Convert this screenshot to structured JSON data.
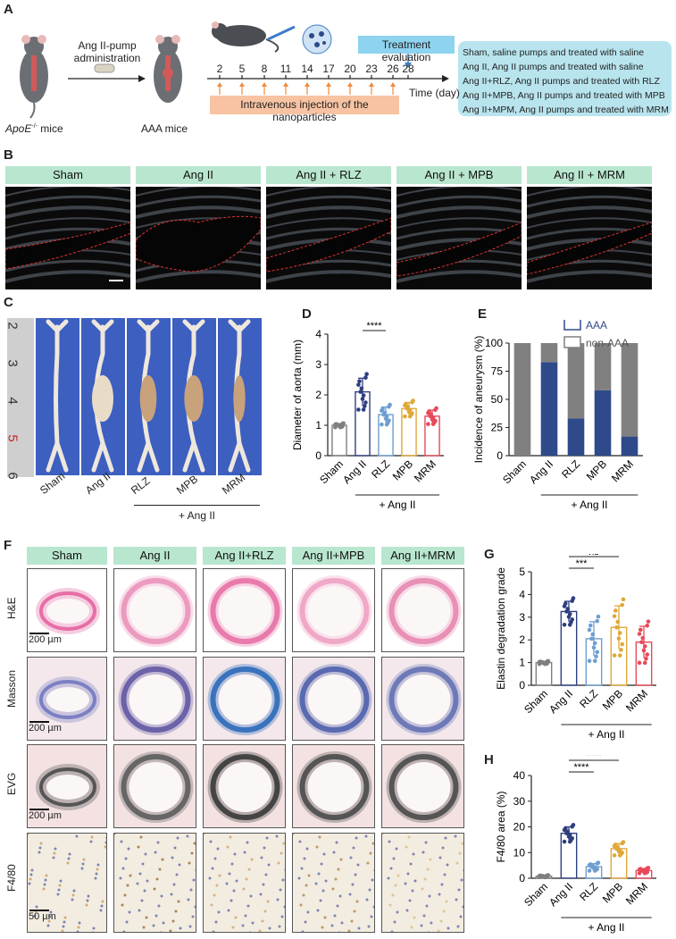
{
  "panels": {
    "A": "A",
    "B": "B",
    "C": "C",
    "D": "D",
    "E": "E",
    "F": "F",
    "G": "G",
    "H": "H"
  },
  "panelA": {
    "pump_text_1": "Ang II-pump",
    "pump_text_2": "administration",
    "mouse1_label_gene": "ApoE",
    "mouse1_label_sup": "-/-",
    "mouse1_label_rest": " mice",
    "mouse2_label": "AAA mice",
    "days": [
      "2",
      "5",
      "8",
      "11",
      "14",
      "17",
      "20",
      "23",
      "26",
      "28"
    ],
    "time_label": "Time (day)",
    "injection_label": "Intravenous injection of the nanoparticles",
    "evaluation_label": "Treatment evaluation",
    "legend": [
      "Sham, saline pumps and treated with saline",
      "Ang II, Ang II pumps and treated with saline",
      "Ang II+RLZ, Ang II pumps and treated with RLZ",
      "Ang II+MPB, Ang II pumps and treated with MPB",
      "Ang II+MPM, Ang II pumps and treated with MRM"
    ]
  },
  "panelB": {
    "groups": [
      "Sham",
      "Ang II",
      "Ang II + RLZ",
      "Ang II + MPB",
      "Ang II + MRM"
    ]
  },
  "panelC": {
    "ruler": [
      "2",
      "3",
      "4",
      "5",
      "6"
    ],
    "groups": [
      "Sham",
      "Ang II",
      "RLZ",
      "MPB",
      "MRM"
    ],
    "treat_label": "+ Ang II"
  },
  "panelF": {
    "groups": [
      "Sham",
      "Ang II",
      "Ang II+RLZ",
      "Ang II+MPB",
      "Ang II+MRM"
    ],
    "rows": [
      "H&E",
      "Masson",
      "EVG",
      "F4/80"
    ],
    "scale_200": "200 µm",
    "scale_50": "50 µm"
  },
  "chart_data": [
    {
      "id": "D",
      "type": "bar",
      "categories": [
        "Sham",
        "Ang II",
        "RLZ",
        "MPB",
        "MRM"
      ],
      "values": [
        1.0,
        2.1,
        1.35,
        1.55,
        1.3
      ],
      "errors": [
        0.05,
        0.45,
        0.25,
        0.2,
        0.2
      ],
      "ylabel": "Diameter of aorta (mm)",
      "ylim": [
        0,
        4
      ],
      "yticks": [
        0,
        1,
        2,
        3,
        4
      ],
      "colors": [
        "#7f7f7f",
        "#2e3f7f",
        "#6e9ed0",
        "#e0a838",
        "#e8495a"
      ],
      "group_label": "+ Ang II",
      "significance": [
        {
          "from": "Ang II",
          "to": "RLZ",
          "label": "****"
        },
        {
          "from": "Ang II",
          "to": "MPB",
          "label": "***"
        },
        {
          "from": "Ang II",
          "to": "MRM",
          "label": "***"
        }
      ]
    },
    {
      "id": "E",
      "type": "bar",
      "stacked": true,
      "categories": [
        "Sham",
        "Ang II",
        "RLZ",
        "MPB",
        "MRM"
      ],
      "series": [
        {
          "name": "AAA",
          "values": [
            0,
            83,
            33,
            58,
            17
          ]
        },
        {
          "name": "non-AAA",
          "values": [
            100,
            17,
            67,
            42,
            83
          ]
        }
      ],
      "ylabel": "Incidence of aneurysm (%)",
      "ylim": [
        0,
        100
      ],
      "yticks": [
        0,
        25,
        50,
        75,
        100
      ],
      "colors": [
        "#2f4a8a",
        "#808080"
      ],
      "group_label": "+ Ang II",
      "legend_placement": "top-right"
    },
    {
      "id": "G",
      "type": "bar",
      "categories": [
        "Sham",
        "Ang II",
        "RLZ",
        "MPB",
        "MRM"
      ],
      "values": [
        1.0,
        3.25,
        2.05,
        2.55,
        1.9
      ],
      "errors": [
        0.0,
        0.45,
        0.75,
        0.95,
        0.7
      ],
      "ylabel": "Elastin degradation grade",
      "ylim": [
        0,
        5
      ],
      "yticks": [
        0,
        1,
        2,
        3,
        4,
        5
      ],
      "colors": [
        "#7f7f7f",
        "#2e3f7f",
        "#6e9ed0",
        "#e0a838",
        "#e8495a"
      ],
      "group_label": "+ Ang II",
      "significance": [
        {
          "from": "Ang II",
          "to": "RLZ",
          "label": "***"
        },
        {
          "from": "Ang II",
          "to": "MPB",
          "label": "ns"
        },
        {
          "from": "Ang II",
          "to": "MRM",
          "label": "****"
        }
      ]
    },
    {
      "id": "H",
      "type": "bar",
      "categories": [
        "Sham",
        "Ang II",
        "RLZ",
        "MPB",
        "MRM"
      ],
      "values": [
        0.8,
        17.5,
        4.5,
        11.5,
        3.0
      ],
      "errors": [
        0.3,
        2.5,
        1.2,
        2.0,
        0.8
      ],
      "ylabel": "F4/80 area (%)",
      "ylim": [
        0,
        40
      ],
      "yticks": [
        0,
        10,
        20,
        30,
        40
      ],
      "colors": [
        "#7f7f7f",
        "#2e3f7f",
        "#6e9ed0",
        "#e0a838",
        "#e8495a"
      ],
      "group_label": "+ Ang II",
      "significance": [
        {
          "from": "Ang II",
          "to": "RLZ",
          "label": "****"
        },
        {
          "from": "Ang II",
          "to": "MPB",
          "label": "****"
        },
        {
          "from": "Ang II",
          "to": "MRM",
          "label": "****"
        }
      ]
    }
  ]
}
